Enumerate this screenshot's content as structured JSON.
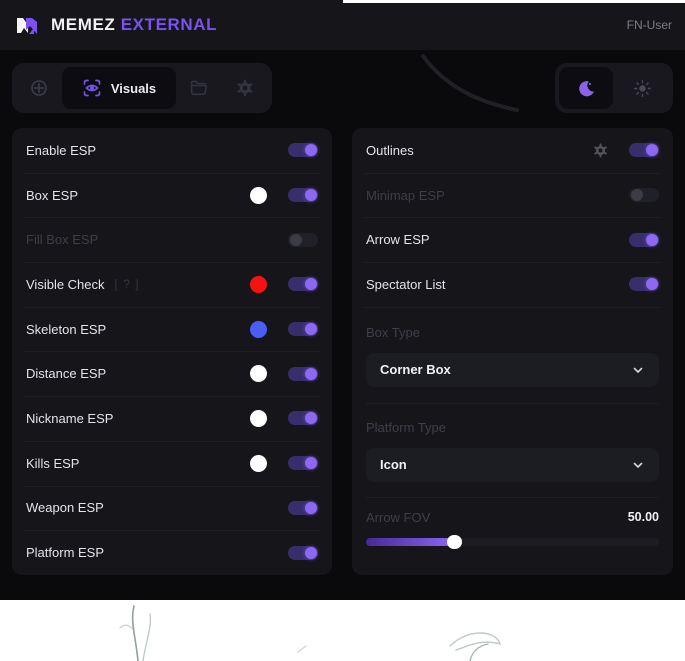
{
  "header": {
    "brand": "MEMEZ",
    "brand_accent": "EXTERNAL",
    "user": "FN-User"
  },
  "toolbar": {
    "active_tab_label": "Visuals"
  },
  "left_panel": {
    "rows": [
      {
        "label": "Enable ESP",
        "toggle": true
      },
      {
        "label": "Box ESP",
        "swatch": "#ffffff",
        "toggle": true
      },
      {
        "label": "Fill Box ESP",
        "toggle": false,
        "disabled": true
      },
      {
        "label": "Visible Check",
        "hint": "[ ? ]",
        "swatch": "#fa1010",
        "toggle": true
      },
      {
        "label": "Skeleton ESP",
        "swatch": "#4a5ef5",
        "toggle": true
      },
      {
        "label": "Distance ESP",
        "swatch": "#ffffff",
        "toggle": true
      },
      {
        "label": "Nickname ESP",
        "swatch": "#ffffff",
        "toggle": true
      },
      {
        "label": "Kills ESP",
        "swatch": "#ffffff",
        "toggle": true
      },
      {
        "label": "Weapon ESP",
        "toggle": true
      },
      {
        "label": "Platform ESP",
        "toggle": true
      }
    ]
  },
  "right_panel": {
    "rows": [
      {
        "label": "Outlines",
        "toggle": true,
        "has_settings": true
      },
      {
        "label": "Minimap ESP",
        "toggle": false,
        "disabled": true
      },
      {
        "label": "Arrow ESP",
        "toggle": true
      },
      {
        "label": "Spectator List",
        "toggle": true
      }
    ],
    "box_type": {
      "label": "Box Type",
      "value": "Corner Box"
    },
    "platform_type": {
      "label": "Platform Type",
      "value": "Icon"
    },
    "arrow_fov": {
      "label": "Arrow FOV",
      "value": "50.00",
      "percent": 29
    }
  },
  "colors": {
    "accent": "#7b52f0",
    "toggle_track_on": "#372e6b",
    "toggle_knob_on": "#8d68f2",
    "swatch_red": "#fa1010",
    "swatch_blue": "#4a5ef5"
  }
}
